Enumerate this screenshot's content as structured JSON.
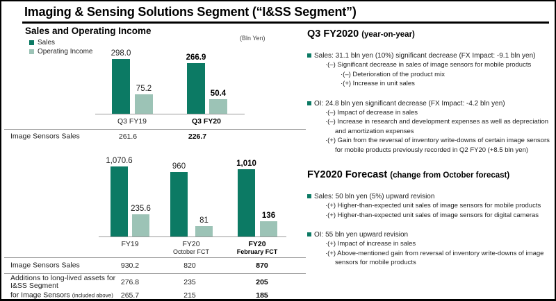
{
  "title": "Imaging & Sensing Solutions Segment (“I&SS Segment”)",
  "colors": {
    "sales": "#0c7a64",
    "operating_income": "#9cc3b6",
    "bullet": "#0c7a64",
    "line": "#999999"
  },
  "left": {
    "heading": "Sales and Operating Income",
    "unit_label": "(Bln Yen)",
    "legend": [
      {
        "name": "sales",
        "label": "Sales"
      },
      {
        "name": "operating-income",
        "label": "Operating Income"
      }
    ]
  },
  "chart_data": [
    {
      "type": "bar",
      "title": "Sales and Operating Income — Q3 year-on-year",
      "unit": "Bln Yen",
      "categories": [
        "Q3 FY19",
        "Q3 FY20"
      ],
      "categories_sub": [
        "",
        ""
      ],
      "emphasis_index": 1,
      "series": [
        {
          "name": "Sales",
          "values": [
            298.0,
            266.9
          ],
          "labels": [
            "298.0",
            "266.9"
          ]
        },
        {
          "name": "Operating Income",
          "values": [
            75.2,
            50.4
          ],
          "labels": [
            "75.2",
            "50.4"
          ]
        }
      ],
      "table": {
        "rows": [
          {
            "label": "Image Sensors Sales",
            "suffix": "",
            "values": [
              "261.6",
              "226.7"
            ]
          }
        ]
      }
    },
    {
      "type": "bar",
      "title": "Sales and Operating Income — FY19 vs FY20 forecasts",
      "unit": "Bln Yen",
      "categories": [
        "FY19",
        "FY20",
        "FY20"
      ],
      "categories_sub": [
        "",
        "October FCT",
        "February FCT"
      ],
      "emphasis_index": 2,
      "series": [
        {
          "name": "Sales",
          "values": [
            1070.6,
            960,
            1010
          ],
          "labels": [
            "1,070.6",
            "960",
            "1,010"
          ]
        },
        {
          "name": "Operating Income",
          "values": [
            235.6,
            81,
            136
          ],
          "labels": [
            "235.6",
            "81",
            "136"
          ]
        }
      ],
      "table": {
        "rows": [
          {
            "label": "Image Sensors Sales",
            "suffix": "",
            "values": [
              "930.2",
              "820",
              "870"
            ]
          },
          {
            "label": "Additions to long-lived assets for\nI&SS Segment",
            "suffix": "",
            "values": [
              "276.8",
              "235",
              "205"
            ]
          },
          {
            "label": "for Image Sensors ",
            "suffix": "(included above)",
            "values": [
              "265.7",
              "215",
              "185"
            ]
          }
        ]
      }
    }
  ],
  "right": {
    "sections": [
      {
        "title": "Q3 FY2020",
        "suffix": "(year-on-year)",
        "bullets": [
          {
            "text": "Sales: 31.1 bln yen (10%) significant decrease (FX Impact: -9.1 bln yen)",
            "subs": [
              {
                "level": 1,
                "text": "·(–) Significant decrease in sales of image sensors for mobile products"
              },
              {
                "level": 2,
                "text": "·(–) Deterioration of the product mix"
              },
              {
                "level": 2,
                "text": "·(+) Increase in unit sales"
              }
            ]
          },
          {
            "text": "OI: 24.8 bln yen significant decrease (FX Impact: -4.2 bln yen)",
            "subs": [
              {
                "level": 1,
                "text": "·(–) Impact of decrease in sales"
              },
              {
                "level": 1,
                "text": "·(–) Increase in research and development expenses as well as depreciation and amortization expenses"
              },
              {
                "level": 1,
                "text": "·(+) Gain from the reversal of inventory write-downs of certain image sensors for mobile products previously recorded in Q2 FY20 (+8.5 bln yen)"
              }
            ]
          }
        ]
      },
      {
        "title": "FY2020 Forecast",
        "suffix": "(change from October forecast)",
        "bullets": [
          {
            "text": "Sales: 50 bln yen (5%) upward revision",
            "subs": [
              {
                "level": 1,
                "text": "·(+) Higher-than-expected unit sales of image sensors for mobile products"
              },
              {
                "level": 1,
                "text": "·(+) Higher-than-expected unit sales of image sensors for digital cameras"
              }
            ]
          },
          {
            "text": "OI: 55 bln yen upward revision",
            "subs": [
              {
                "level": 1,
                "text": "·(+) Impact of increase in sales"
              },
              {
                "level": 1,
                "text": "·(+) Above-mentioned gain from reversal of inventory write-downs of image sensors for mobile products"
              }
            ]
          }
        ]
      }
    ]
  }
}
